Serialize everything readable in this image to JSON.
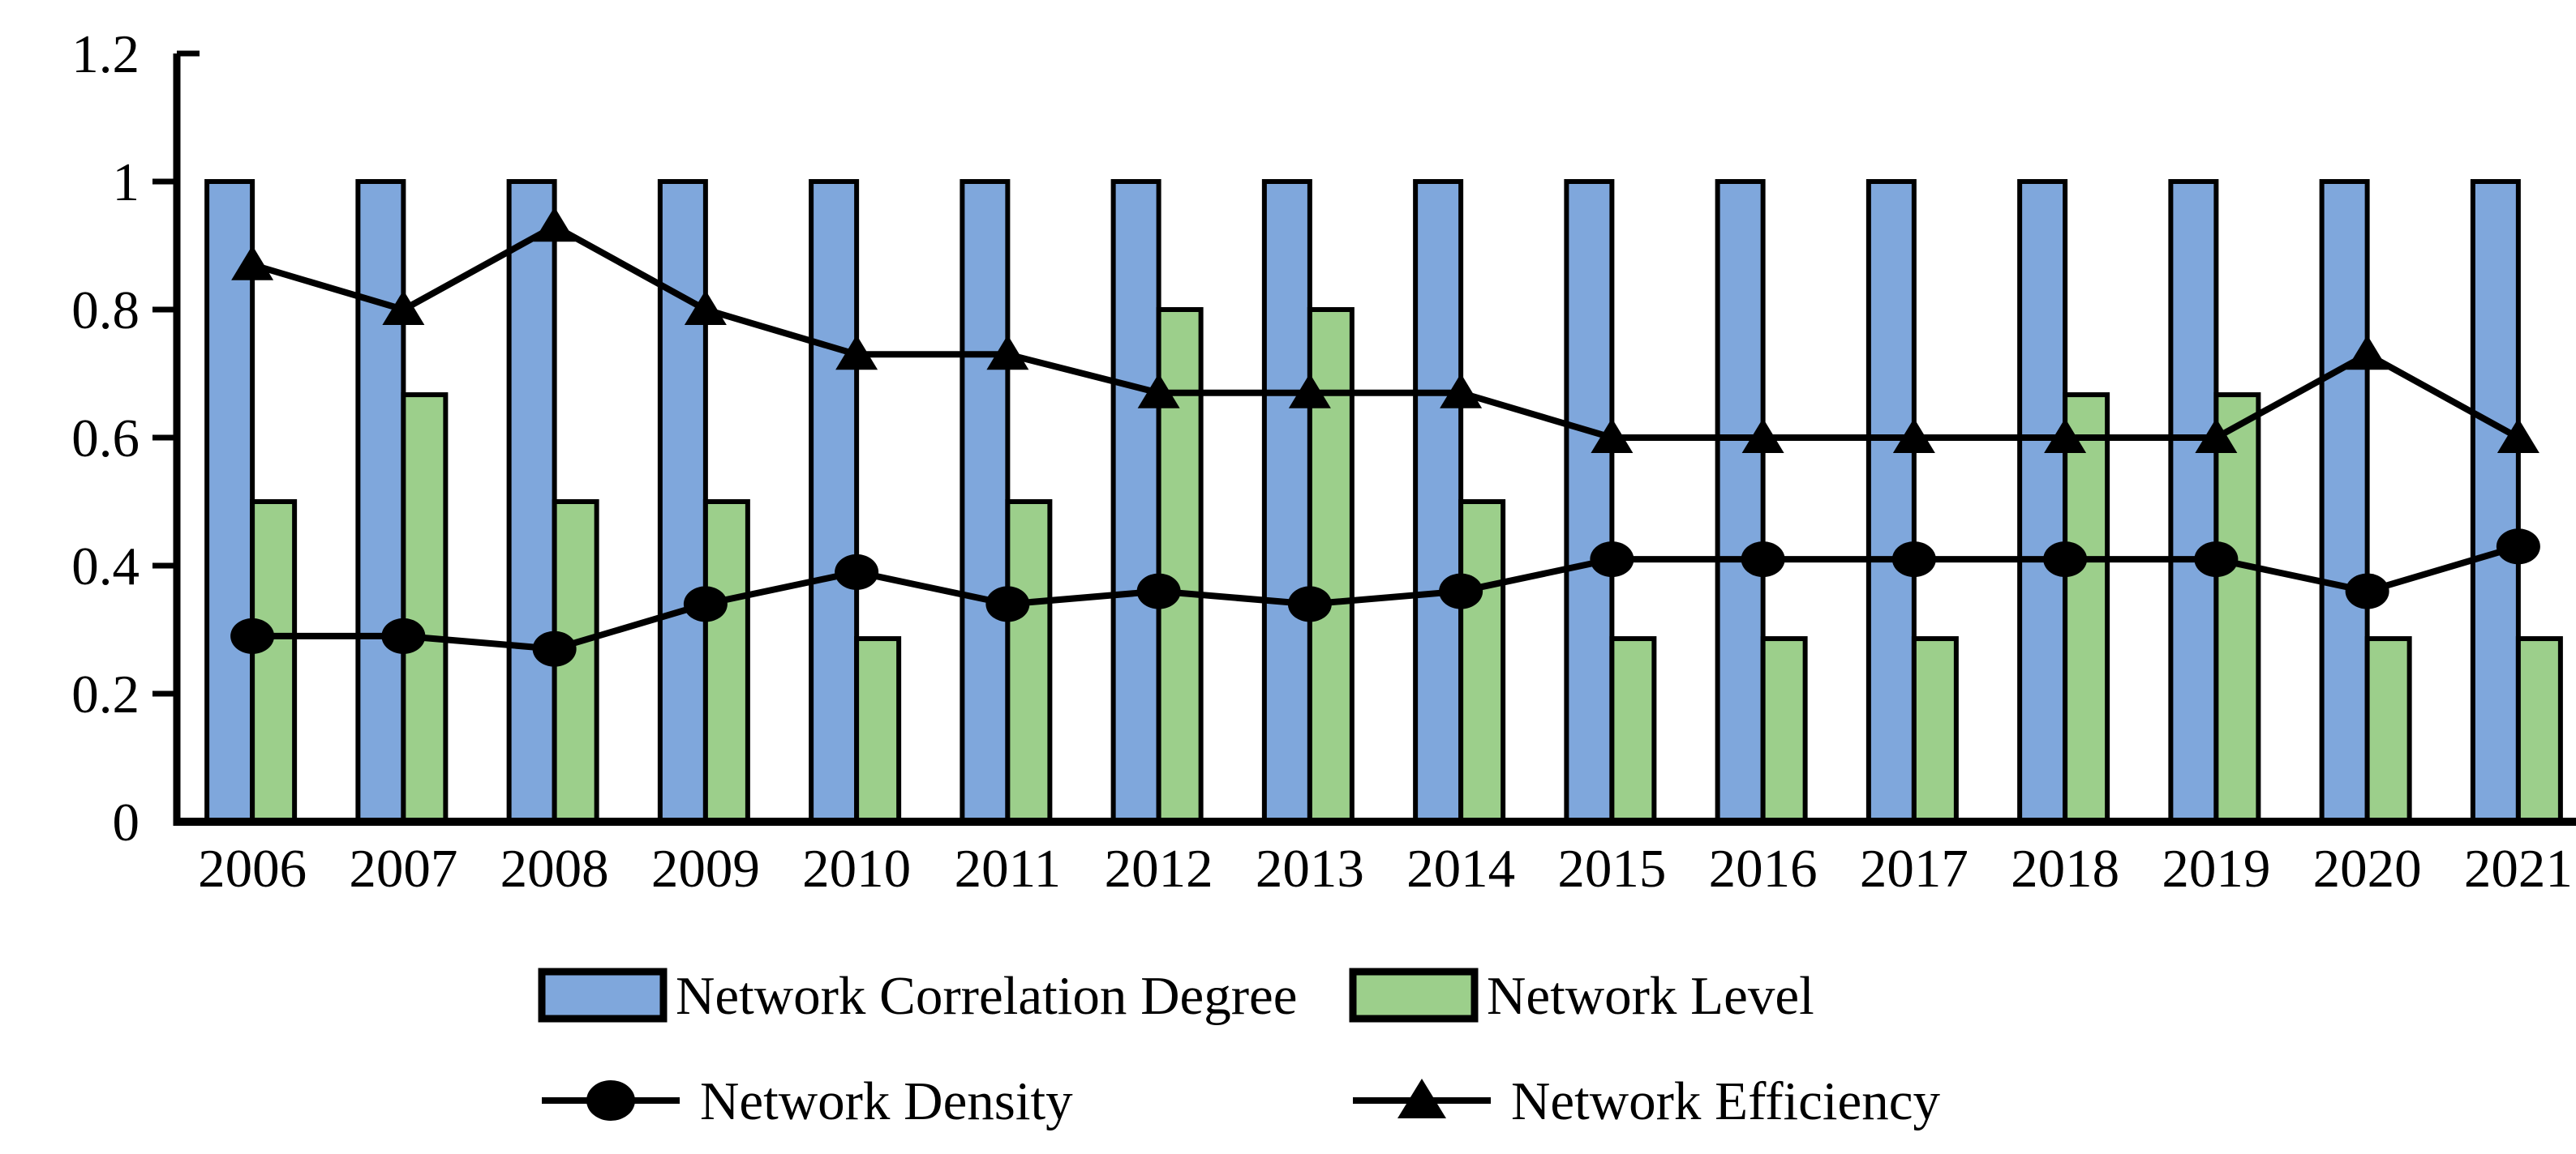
{
  "figure": {
    "background": "#ffffff",
    "axis_color": "#000000",
    "line_color": "#000000"
  },
  "chart_data": {
    "type": "bar",
    "subtype": "bar-line-combo",
    "title": "",
    "xlabel": "",
    "ylabel": "",
    "grid": false,
    "legend_position": "bottom",
    "ylim": [
      0,
      1.2
    ],
    "yticks": [
      "0",
      "0.2",
      "0.4",
      "0.6",
      "0.8",
      "1",
      "1.2"
    ],
    "ytick_values": [
      0,
      0.2,
      0.4,
      0.6,
      0.8,
      1,
      1.2
    ],
    "categories": [
      "2006",
      "2007",
      "2008",
      "2009",
      "2010",
      "2011",
      "2012",
      "2013",
      "2014",
      "2015",
      "2016",
      "2017",
      "2018",
      "2019",
      "2020",
      "2021"
    ],
    "series": [
      {
        "name": "Network Correlation Degree",
        "type": "bar",
        "color": "#7FA7DC",
        "border_color": "#000000",
        "values": [
          1,
          1,
          1,
          1,
          1,
          1,
          1,
          1,
          1,
          1,
          1,
          1,
          1,
          1,
          1,
          1
        ]
      },
      {
        "name": "Network Level",
        "type": "bar",
        "color": "#9CCF8B",
        "border_color": "#000000",
        "values": [
          0.5,
          0.667,
          0.5,
          0.5,
          0.286,
          0.5,
          0.8,
          0.8,
          0.5,
          0.286,
          0.286,
          0.286,
          0.667,
          0.667,
          0.286,
          0.286
        ]
      },
      {
        "name": "Network Density",
        "type": "line",
        "marker": "circle",
        "color": "#000000",
        "values": [
          0.29,
          0.29,
          0.27,
          0.34,
          0.39,
          0.34,
          0.36,
          0.34,
          0.36,
          0.41,
          0.41,
          0.41,
          0.41,
          0.41,
          0.36,
          0.43
        ]
      },
      {
        "name": "Network Efficiency",
        "type": "line",
        "marker": "triangle",
        "color": "#000000",
        "values": [
          0.87,
          0.8,
          0.93,
          0.8,
          0.73,
          0.73,
          0.67,
          0.67,
          0.67,
          0.6,
          0.6,
          0.6,
          0.6,
          0.6,
          0.73,
          0.6
        ]
      }
    ]
  }
}
